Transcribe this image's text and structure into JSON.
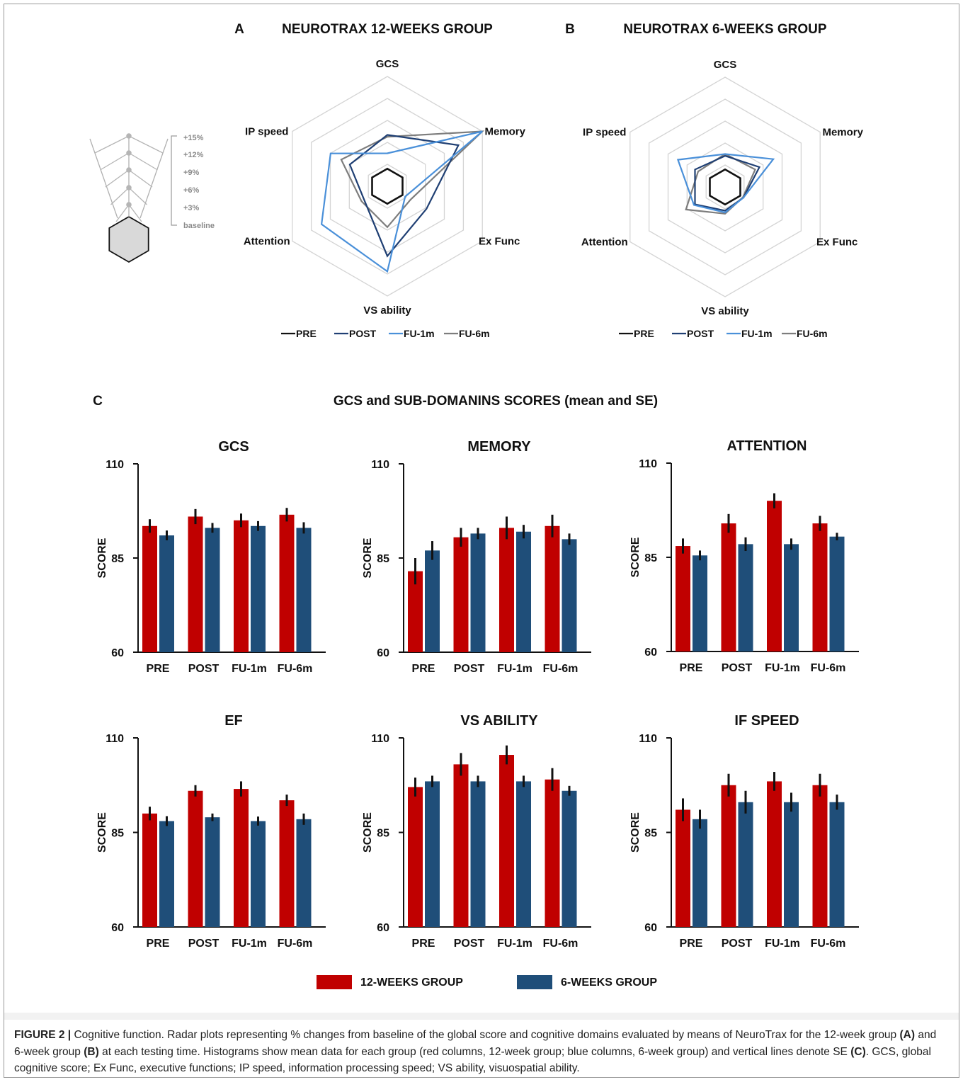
{
  "panels": {
    "A": {
      "letter": "A",
      "title": "NEUROTRAX 12-WEEKS GROUP",
      "axes": [
        "GCS",
        "Memory",
        "Ex Func",
        "VS ability",
        "Attention",
        "IP speed"
      ],
      "legend": [
        "PRE",
        "POST",
        "FU-1m",
        "FU-6m"
      ]
    },
    "B": {
      "letter": "B",
      "title": "NEUROTRAX 6-WEEKS GROUP",
      "axes": [
        "GCS",
        "Memory",
        "Ex Func",
        "VS ability",
        "Attention",
        "IP speed"
      ],
      "legend": [
        "PRE",
        "POST",
        "FU-1m",
        "FU-6m"
      ]
    },
    "C": {
      "letter": "C",
      "title": "GCS and SUB-DOMANINS SCORES (mean and SE)"
    }
  },
  "scale_key": {
    "labels": [
      "+15%",
      "+12%",
      "+9%",
      "+6%",
      "+3%",
      "baseline"
    ]
  },
  "colors": {
    "pre": "#111111",
    "post": "#1f3f73",
    "fu1m": "#4a90d9",
    "fu6m": "#7d7d7d",
    "group12": "#c00000",
    "group6": "#1f4e79",
    "grid": "#d4d4d4"
  },
  "chart_data": [
    {
      "type": "radar",
      "panel": "A",
      "title": "NEUROTRAX 12-WEEKS GROUP",
      "axes": [
        "GCS",
        "Memory",
        "Ex Func",
        "VS ability",
        "Attention",
        "IP speed"
      ],
      "unit": "% change from baseline",
      "range": [
        0,
        15
      ],
      "series": [
        {
          "name": "PRE",
          "values": [
            0,
            0,
            0,
            0,
            0,
            0
          ]
        },
        {
          "name": "POST",
          "values": [
            5.5,
            10.5,
            4.5,
            8.5,
            1.5,
            4.2
          ]
        },
        {
          "name": "FU-1m",
          "values": [
            2.5,
            15,
            0.5,
            11,
            9.5,
            7.8
          ]
        },
        {
          "name": "FU-6m",
          "values": [
            5.2,
            15,
            1.5,
            3.8,
            2,
            5.8
          ]
        }
      ]
    },
    {
      "type": "radar",
      "panel": "B",
      "title": "NEUROTRAX 6-WEEKS GROUP",
      "axes": [
        "GCS",
        "Memory",
        "Ex Func",
        "VS ability",
        "Attention",
        "IP speed"
      ],
      "unit": "% change from baseline",
      "range": [
        0,
        15
      ],
      "series": [
        {
          "name": "PRE",
          "values": [
            0,
            0,
            0,
            0,
            0,
            0
          ]
        },
        {
          "name": "POST",
          "values": [
            2.2,
            3.6,
            0.6,
            1,
            2.8,
            2.8
          ]
        },
        {
          "name": "FU-1m",
          "values": [
            2.5,
            6.2,
            0.6,
            1.3,
            3,
            6
          ]
        },
        {
          "name": "FU-6m",
          "values": [
            2.5,
            2.8,
            0.5,
            1.5,
            4.5,
            2.2
          ]
        }
      ]
    },
    {
      "type": "bar",
      "panel": "C",
      "title": "GCS",
      "categories": [
        "PRE",
        "POST",
        "FU-1m",
        "FU-6m"
      ],
      "ylabel": "SCORE",
      "ylim": [
        60,
        110
      ],
      "yticks": [
        60,
        85,
        110
      ],
      "series": [
        {
          "name": "12-WEEKS GROUP",
          "values": [
            93.5,
            96,
            95,
            96.5
          ],
          "se": [
            1.8,
            2,
            1.8,
            1.8
          ]
        },
        {
          "name": "6-WEEKS GROUP",
          "values": [
            91,
            93,
            93.5,
            93
          ],
          "se": [
            1.3,
            1.3,
            1.3,
            1.5
          ]
        }
      ]
    },
    {
      "type": "bar",
      "panel": "C",
      "title": "MEMORY",
      "categories": [
        "PRE",
        "POST",
        "FU-1m",
        "FU-6m"
      ],
      "ylabel": "SCORE",
      "ylim": [
        60,
        110
      ],
      "yticks": [
        60,
        85,
        110
      ],
      "series": [
        {
          "name": "12-WEEKS GROUP",
          "values": [
            81.5,
            90.5,
            93,
            93.5
          ],
          "se": [
            3.5,
            2.5,
            3,
            3
          ]
        },
        {
          "name": "6-WEEKS GROUP",
          "values": [
            87,
            91.5,
            92,
            90
          ],
          "se": [
            2.5,
            1.5,
            1.8,
            1.5
          ]
        }
      ]
    },
    {
      "type": "bar",
      "panel": "C",
      "title": "ATTENTION",
      "categories": [
        "PRE",
        "POST",
        "FU-1m",
        "FU-6m"
      ],
      "ylabel": "SCORE",
      "ylim": [
        60,
        110
      ],
      "yticks": [
        60,
        85,
        110
      ],
      "series": [
        {
          "name": "12-WEEKS GROUP",
          "values": [
            88,
            94,
            100,
            94
          ],
          "se": [
            2,
            2.5,
            2,
            2
          ]
        },
        {
          "name": "6-WEEKS GROUP",
          "values": [
            85.5,
            88.5,
            88.5,
            90.5
          ],
          "se": [
            1.3,
            1.8,
            1.5,
            1
          ]
        }
      ]
    },
    {
      "type": "bar",
      "panel": "C",
      "title": "EF",
      "categories": [
        "PRE",
        "POST",
        "FU-1m",
        "FU-6m"
      ],
      "ylabel": "SCORE",
      "ylim": [
        60,
        110
      ],
      "yticks": [
        60,
        85,
        110
      ],
      "series": [
        {
          "name": "12-WEEKS GROUP",
          "values": [
            90,
            96,
            96.5,
            93.5
          ],
          "se": [
            1.8,
            1.5,
            2,
            1.5
          ]
        },
        {
          "name": "6-WEEKS GROUP",
          "values": [
            88,
            89,
            88,
            88.5
          ],
          "se": [
            1.3,
            1,
            1.2,
            1.5
          ]
        }
      ]
    },
    {
      "type": "bar",
      "panel": "C",
      "title": "VS ABILITY",
      "categories": [
        "PRE",
        "POST",
        "FU-1m",
        "FU-6m"
      ],
      "ylabel": "SCORE",
      "ylim": [
        60,
        110
      ],
      "yticks": [
        60,
        85,
        110
      ],
      "series": [
        {
          "name": "12-WEEKS GROUP",
          "values": [
            97,
            103,
            105.5,
            99
          ],
          "se": [
            2.5,
            3,
            2.5,
            3
          ]
        },
        {
          "name": "6-WEEKS GROUP",
          "values": [
            98.5,
            98.5,
            98.5,
            96
          ],
          "se": [
            1.5,
            1.5,
            1.5,
            1.3
          ]
        }
      ]
    },
    {
      "type": "bar",
      "panel": "C",
      "title": "IF SPEED",
      "categories": [
        "PRE",
        "POST",
        "FU-1m",
        "FU-6m"
      ],
      "ylabel": "SCORE",
      "ylim": [
        60,
        110
      ],
      "yticks": [
        60,
        85,
        110
      ],
      "series": [
        {
          "name": "12-WEEKS GROUP",
          "values": [
            91,
            97.5,
            98.5,
            97.5
          ],
          "se": [
            3,
            3,
            2.5,
            3
          ]
        },
        {
          "name": "6-WEEKS GROUP",
          "values": [
            88.5,
            93,
            93,
            93
          ],
          "se": [
            2.5,
            3,
            2.5,
            2
          ]
        }
      ]
    }
  ],
  "bar_legend": [
    "12-WEEKS GROUP",
    "6-WEEKS GROUP"
  ],
  "caption": {
    "label": "FIGURE 2 |",
    "s1": " Cognitive function. Radar plots representing % changes from baseline of the global score and cognitive domains evaluated by means of NeuroTrax for the 12-week group ",
    "refA": "(A)",
    "s2": " and 6-week group ",
    "refB": "(B)",
    "s3": " at each testing time. Histograms show mean data for each group (red columns, 12-week group; blue columns, 6-week group) and vertical lines denote SE ",
    "refC": "(C)",
    "s4": ". GCS, global cognitive score; Ex Func, executive functions; IP speed, information processing speed; VS ability, visuospatial ability."
  }
}
